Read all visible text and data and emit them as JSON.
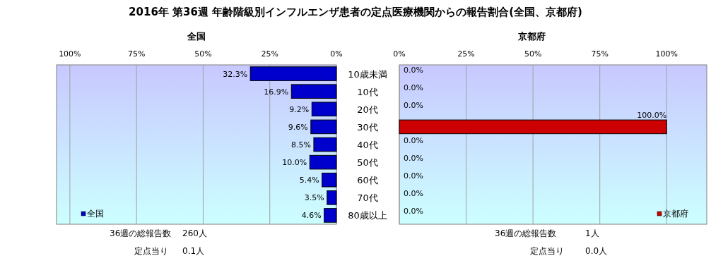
{
  "chart_data": [
    {
      "type": "bar",
      "orientation": "horizontal",
      "title": "2016年 第36週 年齢階級別インフルエンザ患者の定点医療機関からの報告割合(全国、京都府)",
      "subtitle": "全国",
      "categories": [
        "10歳未満",
        "10代",
        "20代",
        "30代",
        "40代",
        "50代",
        "60代",
        "70代",
        "80歳以上"
      ],
      "series": [
        {
          "name": "全国",
          "color": "#0000cc",
          "values": [
            32.3,
            16.9,
            9.2,
            9.6,
            8.5,
            10.0,
            5.4,
            3.5,
            4.6
          ],
          "value_labels": [
            "32.3%",
            "16.9%",
            "9.2%",
            "9.6%",
            "8.5%",
            "10.0%",
            "5.4%",
            "3.5%",
            "4.6%"
          ]
        }
      ],
      "xlim": [
        105,
        0
      ],
      "xticks": [
        {
          "value": 100,
          "label": "100%"
        },
        {
          "value": 75,
          "label": "75%"
        },
        {
          "value": 50,
          "label": "50%"
        },
        {
          "value": 25,
          "label": "25%"
        },
        {
          "value": 0,
          "label": "0%"
        }
      ],
      "grid": "x",
      "legend": "bottom left",
      "annotations": [
        "36週の総報告数",
        "260人",
        "定点当り",
        "0.1人"
      ]
    },
    {
      "type": "bar",
      "orientation": "horizontal",
      "subtitle": "京都府",
      "categories": [
        null,
        null,
        null,
        null,
        null,
        null,
        null,
        null,
        null
      ],
      "series": [
        {
          "name": "京都府",
          "color": "#cc0000",
          "values": [
            0.0,
            0.0,
            0.0,
            100.0,
            0.0,
            0.0,
            0.0,
            0.0,
            0.0
          ],
          "value_labels": [
            "0.0%",
            "0.0%",
            "0.0%",
            "100.0%",
            "0.0%",
            "0.0%",
            "0.0%",
            "0.0%",
            "0.0%"
          ]
        }
      ],
      "xlim": [
        0,
        115
      ],
      "xticks": [
        {
          "value": 0,
          "label": "0%"
        },
        {
          "value": 25,
          "label": "25%"
        },
        {
          "value": 50,
          "label": "50%"
        },
        {
          "value": 75,
          "label": "75%"
        },
        {
          "value": 100,
          "label": "100%"
        }
      ],
      "grid": "x",
      "legend": "bottom right",
      "tick_labels": "x",
      "annotations": [
        "36週の総報告数",
        "1人",
        "定点当り",
        "0.0人"
      ]
    }
  ]
}
